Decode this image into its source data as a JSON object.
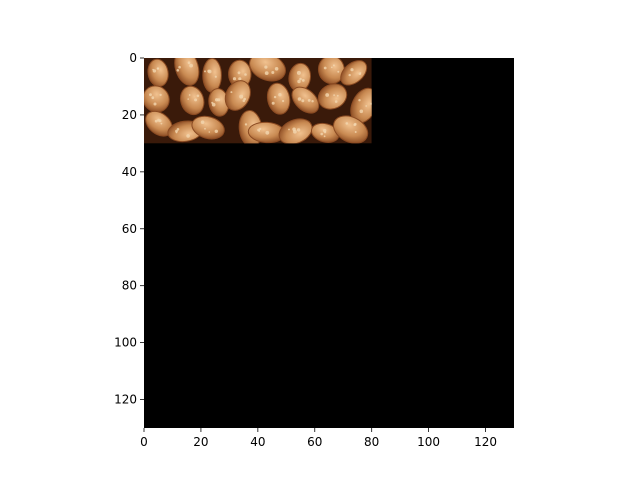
{
  "chart_data": {
    "type": "heatmap",
    "title": "",
    "xlabel": "",
    "ylabel": "",
    "xlim": [
      0,
      130
    ],
    "ylim": [
      130,
      0
    ],
    "y_inverted": true,
    "xticks": [
      0,
      20,
      40,
      60,
      80,
      100,
      120
    ],
    "yticks": [
      0,
      20,
      40,
      60,
      80,
      100,
      120
    ],
    "background_color": "#000000",
    "grid": false,
    "legend": "none",
    "image_content": {
      "description_icon": "beans-photo",
      "x_range": [
        0,
        80
      ],
      "y_range": [
        0,
        30
      ]
    }
  },
  "colors": {
    "bean_light": "#e8b078",
    "bean_mid": "#c98a52",
    "bean_dark": "#8a4a22",
    "bean_shadow": "#3a1a0a",
    "speckle": "#f3d7b0",
    "axes_fill": "#000000"
  }
}
